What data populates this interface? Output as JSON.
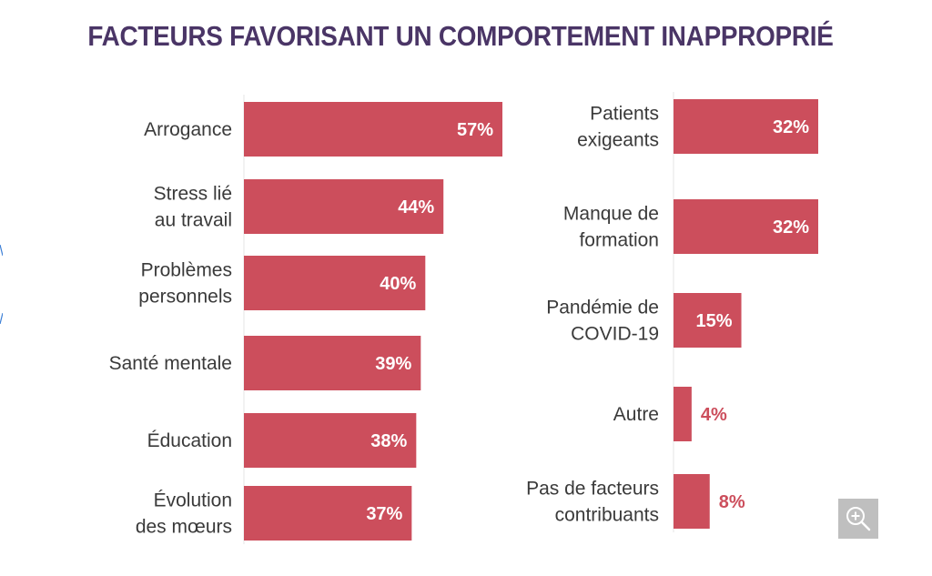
{
  "chart_data": {
    "type": "bar",
    "orientation": "horizontal",
    "title": "FACTEURS FAVORISANT UN COMPORTEMENT INAPPROPRIÉ",
    "value_unit": "%",
    "bar_color": "#cc4e5c",
    "value_label_inside_color": "#ffffff",
    "value_label_outside_color": "#cc4e5c",
    "groups": [
      {
        "categories": [
          [
            "Arrogance"
          ],
          [
            "Stress lié",
            "au travail"
          ],
          [
            "Problèmes",
            "personnels"
          ],
          [
            "Santé mentale"
          ],
          [
            "Éducation"
          ],
          [
            "Évolution",
            "des mœurs"
          ]
        ],
        "values": [
          57,
          44,
          40,
          39,
          38,
          37
        ],
        "value_labels": [
          "57%",
          "44%",
          "40%",
          "39%",
          "38%",
          "37%"
        ]
      },
      {
        "categories": [
          [
            "Patients",
            "exigeants"
          ],
          [
            "Manque de",
            "formation"
          ],
          [
            "Pandémie de",
            "COVID-19"
          ],
          [
            "Autre"
          ],
          [
            "Pas de facteurs",
            "contribuants"
          ]
        ],
        "values": [
          32,
          32,
          15,
          4,
          8
        ],
        "value_labels": [
          "32%",
          "32%",
          "15%",
          "4%",
          "8%"
        ]
      }
    ]
  },
  "ui": {
    "zoom_icon": "zoom-in-icon"
  }
}
